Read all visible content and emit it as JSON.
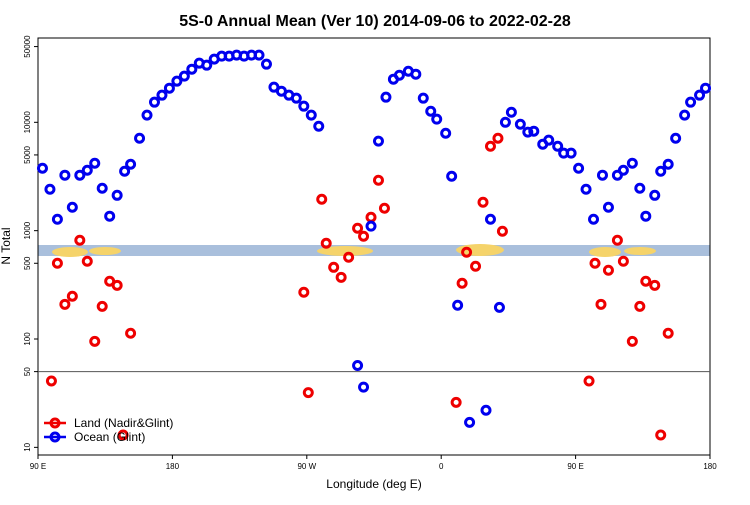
{
  "chart_data": {
    "type": "scatter",
    "title": "5S-0 Annual Mean (Ver 10)   2014-09-06 to 2022-02-28",
    "x_label": "Longitude (deg E)",
    "y_label": "N Total",
    "log_y": true,
    "xlim": [
      90,
      540
    ],
    "ylim": [
      8.5,
      60000
    ],
    "xticks": [
      {
        "value": 90,
        "label": "90 E"
      },
      180,
      {
        "value": 270,
        "label": "90 W"
      },
      {
        "value": 360,
        "label": "0"
      },
      {
        "value": 450,
        "label": "90 E"
      },
      {
        "value": 540,
        "label": "180"
      }
    ],
    "yticks": [
      10,
      50,
      100,
      500,
      1000,
      5000,
      10000,
      50000
    ],
    "reference_line": 50,
    "legend": "bottom-left",
    "series": [
      {
        "name": "Land (Nadir&Glint)",
        "color": "#ee0000",
        "x": [
          99,
          103,
          108,
          113,
          118,
          123,
          128,
          133,
          138,
          143,
          147,
          152,
          268,
          271,
          280,
          283,
          288,
          293,
          298,
          304,
          308,
          313,
          318,
          322,
          370,
          374,
          377,
          383,
          388,
          393,
          398,
          401,
          459,
          463,
          467,
          472,
          478,
          482,
          488,
          493,
          497,
          503,
          507,
          512
        ],
        "values": [
          41,
          500,
          209,
          248,
          815,
          522,
          95,
          200,
          341,
          313,
          13,
          113,
          270,
          32,
          1950,
          765,
          459,
          371,
          568,
          1052,
          888,
          1330,
          2920,
          1610,
          26,
          327,
          632,
          469,
          1830,
          6010,
          7130,
          987,
          41,
          500,
          209,
          431,
          815,
          522,
          95,
          200,
          341,
          313,
          13,
          113
        ]
      },
      {
        "name": "Ocean (Glint)",
        "color": "#0000ee",
        "x": [
          93,
          98,
          103,
          108,
          113,
          118,
          123,
          128,
          133,
          138,
          143,
          148,
          152,
          158,
          163,
          168,
          173,
          178,
          183,
          188,
          193,
          198,
          203,
          208,
          213,
          218,
          223,
          228,
          233,
          238,
          243,
          248,
          253,
          258,
          263,
          268,
          273,
          278,
          304,
          308,
          313,
          318,
          323,
          328,
          332,
          338,
          343,
          348,
          353,
          357,
          363,
          367,
          371,
          379,
          390,
          393,
          399,
          403,
          407,
          413,
          418,
          422,
          428,
          432,
          438,
          442,
          447,
          452,
          457,
          462,
          468,
          472,
          478,
          482,
          488,
          493,
          497,
          503,
          507,
          512,
          517,
          523,
          527,
          533,
          537
        ],
        "values": [
          3770,
          2410,
          1275,
          3250,
          1645,
          3250,
          3610,
          4190,
          2465,
          1360,
          2120,
          3535,
          4100,
          7130,
          11640,
          15340,
          17800,
          20650,
          23970,
          26660,
          30920,
          35140,
          33670,
          38280,
          40780,
          40780,
          41690,
          40780,
          41690,
          41690,
          34400,
          21100,
          19370,
          17800,
          16700,
          14090,
          11640,
          9200,
          57,
          36,
          1100,
          6700,
          17060,
          25000,
          27200,
          29600,
          27800,
          16700,
          12650,
          10690,
          7930,
          3180,
          205,
          17,
          22,
          1275,
          196,
          10000,
          12390,
          9600,
          8110,
          8280,
          6280,
          6840,
          6010,
          5190,
          5190,
          3770,
          2410,
          1275,
          3250,
          1645,
          3250,
          3610,
          4190,
          2465,
          1360,
          2120,
          3535,
          4100,
          7130,
          11640,
          15340,
          17800,
          20650
        ]
      }
    ]
  }
}
